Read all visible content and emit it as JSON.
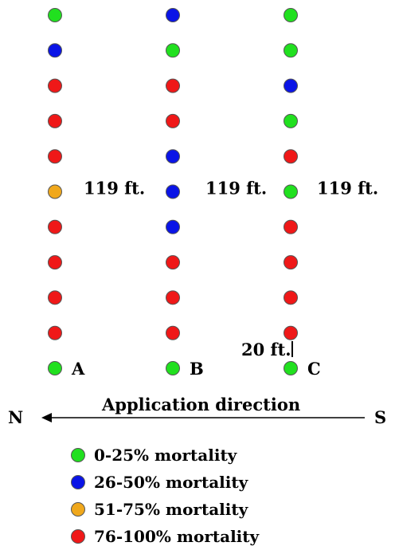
{
  "colors": {
    "green": "#21e01f",
    "blue": "#0a14e6",
    "orange": "#f0a81c",
    "red": "#ef1818"
  },
  "rows": [
    {
      "label": "A",
      "distance_label": "119 ft.",
      "plots": [
        "green",
        "blue",
        "red",
        "red",
        "red",
        "orange",
        "red",
        "red",
        "red",
        "red",
        "green"
      ]
    },
    {
      "label": "B",
      "distance_label": "119 ft.",
      "plots": [
        "blue",
        "green",
        "red",
        "red",
        "blue",
        "blue",
        "blue",
        "red",
        "red",
        "red",
        "green"
      ]
    },
    {
      "label": "C",
      "distance_label": "119 ft.",
      "plots": [
        "green",
        "green",
        "blue",
        "green",
        "red",
        "green",
        "red",
        "red",
        "red",
        "red",
        "green"
      ]
    }
  ],
  "spacing_label": "20 ft.",
  "application": {
    "label": "Application direction",
    "left_end": "N",
    "right_end": "S"
  },
  "legend": [
    {
      "color": "green",
      "label": "0-25% mortality"
    },
    {
      "color": "blue",
      "label": "26-50% mortality"
    },
    {
      "color": "orange",
      "label": "51-75% mortality"
    },
    {
      "color": "red",
      "label": "76-100% mortality"
    }
  ]
}
